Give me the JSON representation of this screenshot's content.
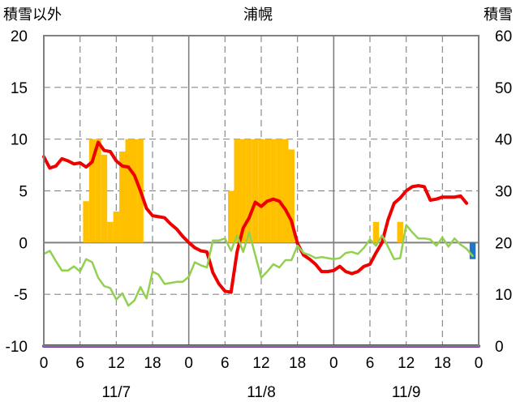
{
  "chart_data": {
    "type": "combo",
    "title": "浦幌",
    "left_axis_label": "積雪以外",
    "right_axis_label": "積雪",
    "left_ylim": [
      -10,
      20
    ],
    "left_yticks": [
      "20",
      "15",
      "10",
      "5",
      "0",
      "-5",
      "-10"
    ],
    "right_ylim": [
      0,
      60
    ],
    "right_yticks": [
      "60",
      "50",
      "40",
      "30",
      "20",
      "10",
      "0"
    ],
    "x_hour_ticks": [
      "0",
      "6",
      "12",
      "18",
      "0",
      "6",
      "12",
      "18",
      "0",
      "6",
      "12",
      "18",
      "0"
    ],
    "x_day_labels": [
      "11/7",
      "11/8",
      "11/9"
    ],
    "x_range_hours": [
      0,
      72
    ],
    "grid": true,
    "colors": {
      "red": "#ee0000",
      "green": "#92d050",
      "bar_orange": "#ffc000",
      "bar_blue": "#1f77c8",
      "purple": "#7030a0",
      "frame": "#808080"
    },
    "series": [
      {
        "kind": "line",
        "color": "red",
        "axis": "left",
        "points": [
          [
            0,
            8.3
          ],
          [
            1,
            7.2
          ],
          [
            2,
            7.4
          ],
          [
            3,
            8.1
          ],
          [
            4,
            7.9
          ],
          [
            5,
            7.6
          ],
          [
            6,
            7.7
          ],
          [
            7,
            7.3
          ],
          [
            8,
            7.8
          ],
          [
            9,
            9.7
          ],
          [
            10,
            8.9
          ],
          [
            11,
            8.8
          ],
          [
            12,
            7.9
          ],
          [
            13,
            7.4
          ],
          [
            14,
            7.3
          ],
          [
            15,
            6.5
          ],
          [
            16,
            5.0
          ],
          [
            17,
            3.3
          ],
          [
            18,
            2.6
          ],
          [
            19,
            2.5
          ],
          [
            20,
            2.4
          ],
          [
            21,
            1.8
          ],
          [
            22,
            1.3
          ],
          [
            23,
            0.6
          ],
          [
            24,
            0.0
          ],
          [
            25,
            -0.5
          ],
          [
            26,
            -0.8
          ],
          [
            27,
            -0.9
          ],
          [
            28,
            -2.9
          ],
          [
            29,
            -4.0
          ],
          [
            30,
            -4.7
          ],
          [
            31,
            -4.8
          ],
          [
            32,
            -0.9
          ],
          [
            33,
            1.4
          ],
          [
            34,
            2.4
          ],
          [
            35,
            3.9
          ],
          [
            36,
            3.5
          ],
          [
            37,
            4.0
          ],
          [
            38,
            4.2
          ],
          [
            39,
            4.0
          ],
          [
            40,
            3.2
          ],
          [
            41,
            2.1
          ],
          [
            42,
            -0.1
          ],
          [
            43,
            -1.2
          ],
          [
            44,
            -1.6
          ],
          [
            45,
            -2.1
          ],
          [
            46,
            -2.8
          ],
          [
            47,
            -2.8
          ],
          [
            48,
            -2.7
          ],
          [
            49,
            -2.3
          ],
          [
            50,
            -2.8
          ],
          [
            51,
            -3.0
          ],
          [
            52,
            -2.8
          ],
          [
            53,
            -2.3
          ],
          [
            54,
            -2.1
          ],
          [
            55,
            -1.0
          ],
          [
            56,
            0.0
          ],
          [
            57,
            2.2
          ],
          [
            58,
            3.8
          ],
          [
            59,
            4.3
          ],
          [
            60,
            5.0
          ],
          [
            61,
            5.4
          ],
          [
            62,
            5.5
          ],
          [
            63,
            5.4
          ],
          [
            64,
            4.1
          ],
          [
            65,
            4.2
          ],
          [
            66,
            4.4
          ],
          [
            67,
            4.4
          ],
          [
            68,
            4.4
          ],
          [
            69,
            4.5
          ],
          [
            70,
            3.8
          ]
        ]
      },
      {
        "kind": "line",
        "color": "green",
        "axis": "left",
        "points": [
          [
            0,
            -1.1
          ],
          [
            1,
            -0.8
          ],
          [
            2,
            -1.8
          ],
          [
            3,
            -2.7
          ],
          [
            4,
            -2.7
          ],
          [
            5,
            -2.3
          ],
          [
            6,
            -2.8
          ],
          [
            7,
            -1.6
          ],
          [
            8,
            -1.9
          ],
          [
            9,
            -3.4
          ],
          [
            10,
            -4.2
          ],
          [
            11,
            -4.4
          ],
          [
            12,
            -5.5
          ],
          [
            13,
            -4.9
          ],
          [
            14,
            -6.1
          ],
          [
            15,
            -5.6
          ],
          [
            16,
            -4.3
          ],
          [
            17,
            -5.4
          ],
          [
            18,
            -2.8
          ],
          [
            19,
            -3.1
          ],
          [
            20,
            -4.0
          ],
          [
            21,
            -3.9
          ],
          [
            22,
            -3.8
          ],
          [
            23,
            -3.8
          ],
          [
            24,
            -3.3
          ],
          [
            25,
            -1.9
          ],
          [
            26,
            -2.2
          ],
          [
            27,
            -2.4
          ],
          [
            28,
            0.2
          ],
          [
            29,
            0.2
          ],
          [
            30,
            0.4
          ],
          [
            31,
            -0.8
          ],
          [
            32,
            0.7
          ],
          [
            33,
            -0.9
          ],
          [
            34,
            1.0
          ],
          [
            35,
            -1.2
          ],
          [
            36,
            -3.4
          ],
          [
            37,
            -2.8
          ],
          [
            38,
            -2.1
          ],
          [
            39,
            -2.4
          ],
          [
            40,
            -1.7
          ],
          [
            41,
            -1.7
          ],
          [
            42,
            -0.3
          ],
          [
            43,
            -1.0
          ],
          [
            44,
            -1.2
          ],
          [
            45,
            -1.5
          ],
          [
            46,
            -1.4
          ],
          [
            47,
            -1.5
          ],
          [
            48,
            -1.6
          ],
          [
            49,
            -1.5
          ],
          [
            50,
            -1.0
          ],
          [
            51,
            -0.9
          ],
          [
            52,
            -1.1
          ],
          [
            53,
            -0.5
          ],
          [
            54,
            0.3
          ],
          [
            55,
            -0.3
          ],
          [
            56,
            0.7
          ],
          [
            57,
            -0.4
          ],
          [
            58,
            -1.6
          ],
          [
            59,
            -1.5
          ],
          [
            60,
            1.7
          ],
          [
            61,
            1.0
          ],
          [
            62,
            0.4
          ],
          [
            63,
            0.4
          ],
          [
            64,
            0.3
          ],
          [
            65,
            -0.3
          ],
          [
            66,
            0.5
          ],
          [
            67,
            -0.4
          ],
          [
            68,
            0.4
          ],
          [
            69,
            -0.2
          ],
          [
            70,
            -0.6
          ],
          [
            71,
            -1.3
          ]
        ]
      },
      {
        "kind": "line",
        "color": "purple",
        "axis": "left",
        "points": [
          [
            0,
            -10
          ],
          [
            72,
            -10
          ]
        ]
      },
      {
        "kind": "bar",
        "color": "bar_orange",
        "axis": "left",
        "points": [
          [
            7,
            4
          ],
          [
            8,
            10
          ],
          [
            9,
            10
          ],
          [
            10,
            8.5
          ],
          [
            11,
            2
          ],
          [
            12,
            3
          ],
          [
            13,
            8.8
          ],
          [
            14,
            10
          ],
          [
            15,
            10
          ],
          [
            16,
            10
          ],
          [
            31,
            5
          ],
          [
            32,
            10
          ],
          [
            33,
            10
          ],
          [
            34,
            10
          ],
          [
            35,
            10
          ],
          [
            36,
            10
          ],
          [
            37,
            10
          ],
          [
            38,
            10
          ],
          [
            39,
            10
          ],
          [
            40,
            10
          ],
          [
            41,
            9
          ],
          [
            55,
            2
          ],
          [
            59,
            2
          ]
        ]
      },
      {
        "kind": "bar",
        "color": "bar_blue",
        "axis": "left",
        "points": [
          [
            71,
            -1.6
          ]
        ]
      }
    ]
  }
}
